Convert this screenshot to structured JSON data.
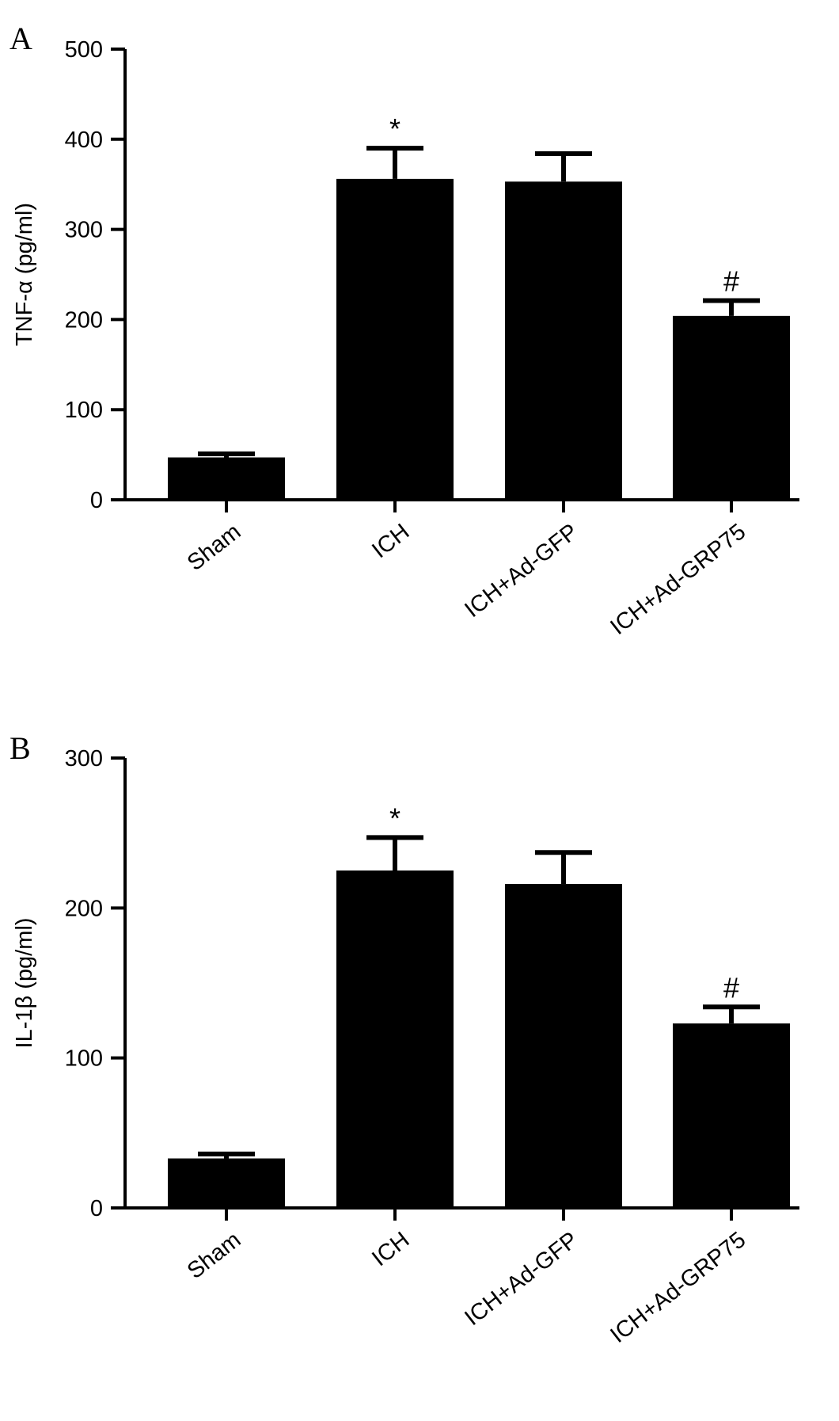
{
  "chart_data": [
    {
      "type": "bar",
      "panel": "A",
      "ylabel": "TNF-α (pg/ml)",
      "ylim": [
        0,
        500
      ],
      "yticks": [
        0,
        100,
        200,
        300,
        400,
        500
      ],
      "categories": [
        "Sham",
        "ICH",
        "ICH+Ad-GFP",
        "ICH+Ad-GRP75"
      ],
      "values": [
        47,
        356,
        353,
        204
      ],
      "errors": [
        4,
        34,
        31,
        17
      ],
      "annotations": [
        "",
        "*",
        "",
        "#"
      ]
    },
    {
      "type": "bar",
      "panel": "B",
      "ylabel": "IL-1β (pg/ml)",
      "ylim": [
        0,
        300
      ],
      "yticks": [
        0,
        100,
        200,
        300
      ],
      "categories": [
        "Sham",
        "ICH",
        "ICH+Ad-GFP",
        "ICH+Ad-GRP75"
      ],
      "values": [
        33,
        225,
        216,
        123
      ],
      "errors": [
        3,
        22,
        21,
        11
      ],
      "annotations": [
        "",
        "*",
        "",
        "#"
      ]
    }
  ]
}
